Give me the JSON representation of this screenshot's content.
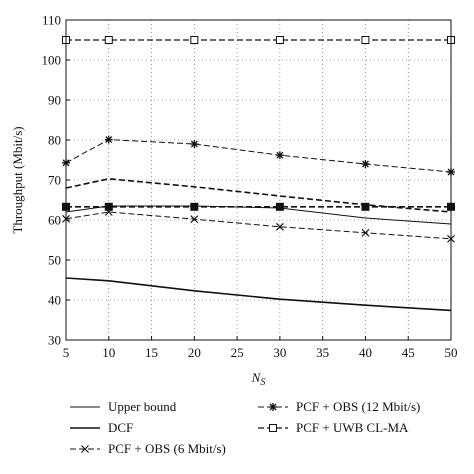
{
  "chart_data": {
    "type": "line",
    "title": "",
    "xlabel": "N",
    "xlabel_sub": "S",
    "ylabel": "Throughput (Mbit/s)",
    "xlim": [
      5,
      50
    ],
    "ylim": [
      30,
      110
    ],
    "xticks": [
      5,
      10,
      15,
      20,
      25,
      30,
      35,
      40,
      45,
      50
    ],
    "yticks": [
      30,
      40,
      50,
      60,
      70,
      80,
      90,
      100,
      110
    ],
    "grid": true,
    "legend_placement": "below",
    "x": [
      5,
      10,
      20,
      30,
      40,
      50
    ],
    "series": [
      {
        "name": "Upper bound",
        "values": [
          62.0,
          63.5,
          63.5,
          63.0,
          60.5,
          59.0
        ],
        "style": "solid",
        "width": 1.0,
        "marker": "none",
        "color": "#111111"
      },
      {
        "name": "DCF",
        "values": [
          45.5,
          44.8,
          42.3,
          40.2,
          38.7,
          37.4
        ],
        "style": "solid",
        "width": 1.6,
        "marker": "none",
        "color": "#111111"
      },
      {
        "name": "PCF + OBS (6 Mbit/s)",
        "values": [
          60.3,
          62.0,
          60.2,
          58.3,
          56.8,
          55.3
        ],
        "style": "dashed",
        "width": 1.0,
        "marker": "x",
        "color": "#111111"
      },
      {
        "name": "PCF + OBS (12 Mbit/s)",
        "values": [
          74.3,
          80.1,
          79.0,
          76.2,
          74.0,
          72.0
        ],
        "style": "dashed",
        "width": 1.0,
        "marker": "star",
        "color": "#111111"
      },
      {
        "name": "PCF + UWB CL-MA",
        "values": [
          105.0,
          105.0,
          105.0,
          105.0,
          105.0,
          105.0
        ],
        "style": "dashed",
        "width": 1.2,
        "marker": "square",
        "color": "#111111"
      },
      {
        "name": "",
        "values": [
          68.0,
          70.3,
          68.3,
          66.0,
          63.8,
          62.0
        ],
        "style": "dashed",
        "width": 1.6,
        "marker": "none",
        "color": "#111111"
      },
      {
        "name": "",
        "values": [
          63.3,
          63.3,
          63.3,
          63.3,
          63.3,
          63.3
        ],
        "style": "dashed",
        "width": 1.6,
        "marker": "filled-square",
        "color": "#111111"
      }
    ]
  }
}
